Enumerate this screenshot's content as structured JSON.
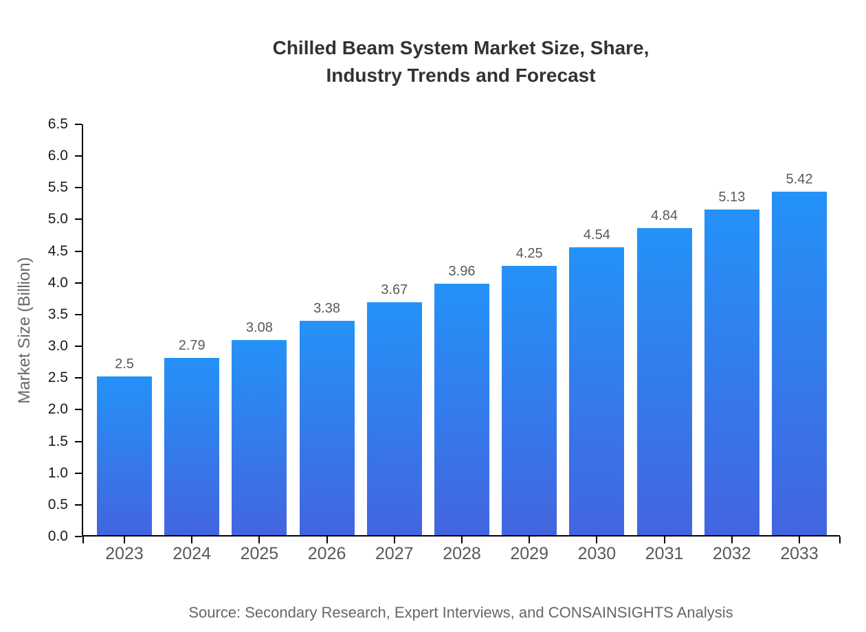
{
  "chart_data": {
    "type": "bar",
    "title": "Chilled Beam System Market Size, Share, Industry Trends and Forecast",
    "title_lines": [
      "Chilled Beam System Market Size, Share,",
      "Industry Trends and Forecast"
    ],
    "categories": [
      "2023",
      "2024",
      "2025",
      "2026",
      "2027",
      "2028",
      "2029",
      "2030",
      "2031",
      "2032",
      "2033"
    ],
    "values": [
      2.5,
      2.79,
      3.08,
      3.38,
      3.67,
      3.96,
      4.25,
      4.54,
      4.84,
      5.13,
      5.42
    ],
    "value_labels": [
      "2.5",
      "2.79",
      "3.08",
      "3.38",
      "3.67",
      "3.96",
      "4.25",
      "4.54",
      "4.84",
      "5.13",
      "5.42"
    ],
    "xlabel": "",
    "ylabel": "Market Size (Billion)",
    "ylim": [
      0,
      6.5
    ],
    "ytick_step": 0.5,
    "ytick_decimals": 1,
    "grid": false,
    "legend": "none",
    "source": "Source: Secondary Research, Expert Interviews, and CONSAINSIGHTS Analysis",
    "colors": {
      "bar_gradient_top": "#2492f8",
      "bar_gradient_bottom": "#4365df",
      "axis": "#000000",
      "ytick_label": "#1a1a1a",
      "category_label": "#595959",
      "value_label": "#595959",
      "axis_title": "#686868",
      "title": "#333333",
      "source": "#666666"
    }
  }
}
